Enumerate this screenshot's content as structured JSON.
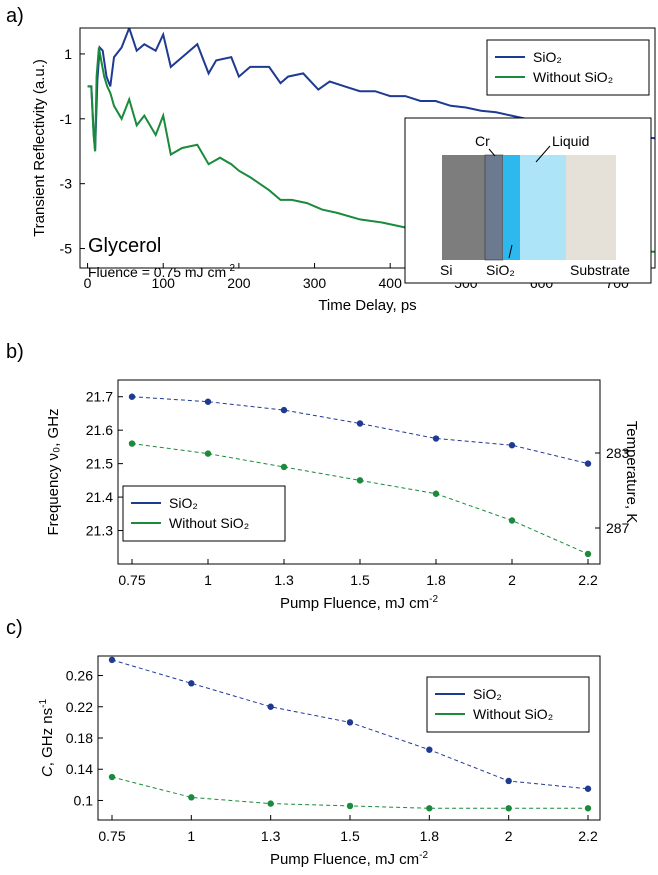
{
  "chart_data": [
    {
      "panel_label": "a)",
      "type": "line",
      "xlabel": "Time Delay, ps",
      "ylabel": "Transient Reflectivity (a.u.)",
      "xlim": [
        -10,
        750
      ],
      "ylim": [
        -5.6,
        1.8
      ],
      "x_ticks": [
        0,
        100,
        200,
        300,
        400,
        500,
        600,
        700
      ],
      "y_ticks": [
        1,
        -1,
        -3,
        -5
      ],
      "annotation_title": "Glycerol",
      "annotation_fluence": "Fluence = 0.75 mJ cm",
      "annotation_fluence_exp": "-2",
      "legend": {
        "placement": "top-right",
        "entries": [
          "SiO₂",
          "Without SiO₂"
        ]
      },
      "series": [
        {
          "name": "SiO₂",
          "color": "#1f3a93",
          "x": [
            0,
            5,
            8,
            10,
            13,
            16,
            20,
            25,
            30,
            35,
            45,
            55,
            65,
            75,
            90,
            100,
            110,
            125,
            145,
            160,
            170,
            190,
            200,
            215,
            240,
            255,
            265,
            285,
            305,
            320,
            340,
            360,
            380,
            400,
            420,
            440,
            460,
            480,
            500,
            520,
            540,
            560,
            600,
            650,
            700,
            750
          ],
          "values": [
            0.0,
            0.0,
            -1.4,
            -2.0,
            0.2,
            1.2,
            1.1,
            0.3,
            0.0,
            0.9,
            1.2,
            1.8,
            1.1,
            1.3,
            1.1,
            1.6,
            0.6,
            0.9,
            1.3,
            0.4,
            0.8,
            0.9,
            0.3,
            0.6,
            0.6,
            0.1,
            0.3,
            0.4,
            -0.1,
            0.15,
            0.0,
            -0.15,
            -0.15,
            -0.3,
            -0.3,
            -0.45,
            -0.45,
            -0.6,
            -0.65,
            -0.75,
            -0.8,
            -0.9,
            -1.1,
            -1.3,
            -1.5,
            -1.6
          ]
        },
        {
          "name": "Without SiO₂",
          "color": "#1a8a3c",
          "x": [
            0,
            5,
            8,
            10,
            12,
            15,
            18,
            22,
            26,
            30,
            35,
            45,
            55,
            65,
            75,
            90,
            100,
            110,
            125,
            145,
            160,
            175,
            190,
            200,
            215,
            240,
            255,
            270,
            290,
            310,
            330,
            360,
            390,
            420,
            460,
            500,
            550,
            600,
            650,
            700,
            750
          ],
          "values": [
            0.0,
            0.0,
            -1.5,
            -2.0,
            0.3,
            1.2,
            0.8,
            0.3,
            0.0,
            -0.2,
            -0.6,
            -1.0,
            -0.4,
            -1.2,
            -0.9,
            -1.5,
            -0.9,
            -2.1,
            -1.9,
            -1.8,
            -2.4,
            -2.2,
            -2.4,
            -2.6,
            -2.8,
            -3.2,
            -3.5,
            -3.5,
            -3.6,
            -3.8,
            -3.9,
            -4.1,
            -4.2,
            -4.35,
            -4.5,
            -4.6,
            -4.75,
            -4.85,
            -4.95,
            -5.05,
            -5.1
          ]
        }
      ],
      "inset": {
        "layers": [
          {
            "label": "Si",
            "color": "#7d7d7d"
          },
          {
            "label": "Cr",
            "color": "#6b7a8f"
          },
          {
            "label": "SiO₂",
            "color": "#2db9ee"
          },
          {
            "label": "Liquid",
            "color": "#ade4f7"
          },
          {
            "label": "Substrate",
            "color": "#e5e1d8"
          }
        ]
      }
    },
    {
      "panel_label": "b)",
      "type": "line",
      "xlabel": "Pump Fluence, mJ cm",
      "xlabel_exp": "-2",
      "ylabel": "Frequency ν₀, GHz",
      "ylabel_right": "Temperature, K",
      "categories": [
        "0.75",
        "1",
        "1.3",
        "1.5",
        "1.8",
        "2",
        "2.2"
      ],
      "ylim": [
        21.2,
        21.75
      ],
      "y_ticks": [
        "21.7",
        "21.6",
        "21.5",
        "21.4",
        "21.3"
      ],
      "y_ticks_right": [
        "283",
        "287"
      ],
      "legend": {
        "placement": "bottom-left",
        "entries": [
          "SiO₂",
          "Without SiO₂"
        ]
      },
      "series": [
        {
          "name": "SiO₂",
          "color": "#1f3a93",
          "values": [
            21.7,
            21.685,
            21.66,
            21.62,
            21.575,
            21.555,
            21.5
          ]
        },
        {
          "name": "Without SiO₂",
          "color": "#1a8a3c",
          "values": [
            21.56,
            21.53,
            21.49,
            21.45,
            21.41,
            21.33,
            21.23
          ]
        }
      ]
    },
    {
      "panel_label": "c)",
      "type": "line",
      "xlabel": "Pump Fluence, mJ cm",
      "xlabel_exp": "-2",
      "ylabel": "C",
      "ylabel_rest": ", GHz ns",
      "ylabel_exp": "-1",
      "categories": [
        "0.75",
        "1",
        "1.3",
        "1.5",
        "1.8",
        "2",
        "2.2"
      ],
      "ylim": [
        0.075,
        0.285
      ],
      "y_ticks": [
        "0.26",
        "0.22",
        "0.18",
        "0.14",
        "0.1"
      ],
      "legend": {
        "placement": "top-right",
        "entries": [
          "SiO₂",
          "Without SiO₂"
        ]
      },
      "series": [
        {
          "name": "SiO₂",
          "color": "#1f3a93",
          "values": [
            0.28,
            0.25,
            0.22,
            0.2,
            0.165,
            0.125,
            0.115
          ]
        },
        {
          "name": "Without SiO₂",
          "color": "#1a8a3c",
          "values": [
            0.13,
            0.104,
            0.096,
            0.093,
            0.09,
            0.09,
            0.09
          ]
        }
      ]
    }
  ]
}
